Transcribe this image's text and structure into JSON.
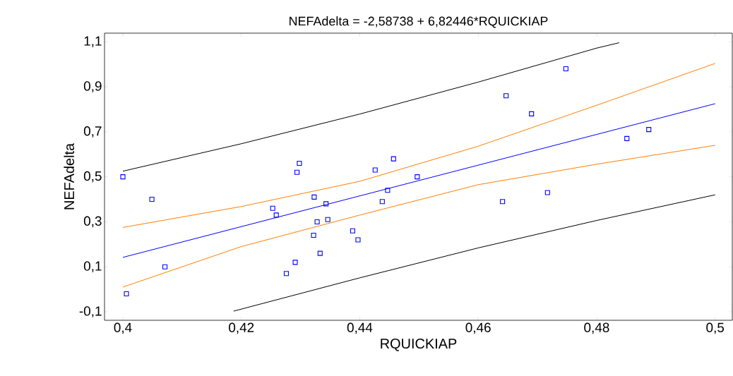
{
  "chart_data": {
    "type": "scatter",
    "title": "NEFAdelta = -2,58738 + 6,82446*RQUICKIAP",
    "xlabel": "RQUICKIAP",
    "ylabel": "NEFAdelta",
    "xlim": [
      0.3969,
      0.5029
    ],
    "ylim": [
      -0.1376,
      1.1385
    ],
    "xticks": [
      {
        "value": 0.4,
        "label": "0,4"
      },
      {
        "value": 0.42,
        "label": "0,42"
      },
      {
        "value": 0.44,
        "label": "0,44"
      },
      {
        "value": 0.46,
        "label": "0,46"
      },
      {
        "value": 0.48,
        "label": "0,48"
      },
      {
        "value": 0.5,
        "label": "0,5"
      }
    ],
    "yticks": [
      {
        "value": -0.1,
        "label": "-0,1"
      },
      {
        "value": 0.1,
        "label": "0,1"
      },
      {
        "value": 0.3,
        "label": "0,3"
      },
      {
        "value": 0.5,
        "label": "0,5"
      },
      {
        "value": 0.7,
        "label": "0,7"
      },
      {
        "value": 0.9,
        "label": "0,9"
      },
      {
        "value": 1.1,
        "label": "1,1"
      }
    ],
    "grid": false,
    "series": [
      {
        "type": "line",
        "color": "#000000",
        "marker": "none",
        "x": [
          0.4,
          0.42,
          0.44,
          0.46,
          0.48,
          0.4838
        ],
        "values": [
          0.525,
          0.647,
          0.779,
          0.921,
          1.072,
          1.096
        ]
      },
      {
        "type": "line",
        "color": "#000000",
        "marker": "none",
        "x": [
          0.4187,
          0.44,
          0.46,
          0.48,
          0.5
        ],
        "values": [
          -0.097,
          0.051,
          0.184,
          0.306,
          0.42
        ]
      },
      {
        "type": "line",
        "color": "#ff7f00",
        "marker": "none",
        "x": [
          0.4,
          0.42,
          0.44,
          0.46,
          0.48,
          0.5
        ],
        "values": [
          0.275,
          0.368,
          0.48,
          0.636,
          0.818,
          1.004
        ]
      },
      {
        "type": "line",
        "color": "#ff7f00",
        "marker": "none",
        "x": [
          0.4,
          0.42,
          0.44,
          0.46,
          0.48,
          0.5
        ],
        "values": [
          0.01,
          0.19,
          0.33,
          0.465,
          0.556,
          0.64
        ]
      },
      {
        "type": "line",
        "color": "#0000ff",
        "marker": "none",
        "x": [
          0.4,
          0.5
        ],
        "values": [
          0.142,
          0.825
        ]
      },
      {
        "color": "#0000ff",
        "marker": "square",
        "x": [
          0.4,
          0.4006,
          0.4049,
          0.4071,
          0.4253,
          0.4259,
          0.4276,
          0.4291,
          0.4294,
          0.4298,
          0.4322,
          0.4323,
          0.4328,
          0.4333,
          0.4343,
          0.4346,
          0.4388,
          0.4397,
          0.4426,
          0.4438,
          0.4447,
          0.4457,
          0.4497,
          0.4641,
          0.4647,
          0.469,
          0.4717,
          0.4748,
          0.4851,
          0.4888
        ],
        "values": [
          0.5,
          -0.02,
          0.4,
          0.1,
          0.36,
          0.33,
          0.07,
          0.12,
          0.52,
          0.56,
          0.24,
          0.41,
          0.3,
          0.16,
          0.38,
          0.31,
          0.26,
          0.22,
          0.53,
          0.39,
          0.44,
          0.58,
          0.5,
          0.39,
          0.86,
          0.78,
          0.43,
          0.98,
          0.67,
          0.71
        ]
      }
    ]
  }
}
